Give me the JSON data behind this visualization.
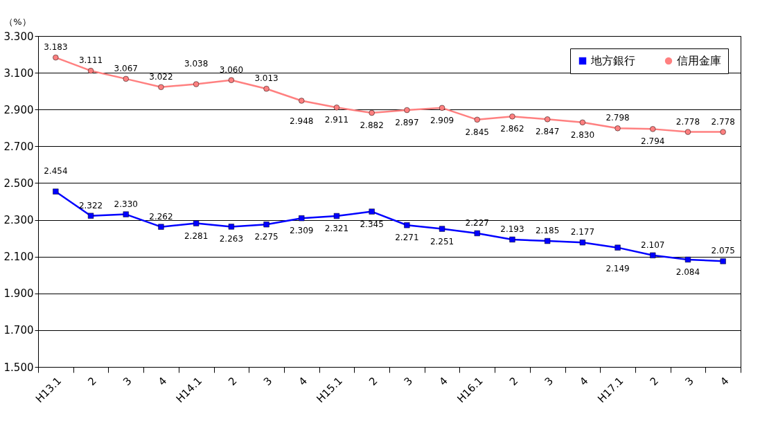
{
  "chart_data": {
    "type": "line",
    "ylabel": "（%）",
    "categories": [
      "H13.1",
      "2",
      "3",
      "4",
      "H14.1",
      "2",
      "3",
      "4",
      "H15.1",
      "2",
      "3",
      "4",
      "H16.1",
      "2",
      "3",
      "4",
      "H17.1",
      "2",
      "3",
      "4"
    ],
    "series": [
      {
        "name": "地方銀行",
        "color": "#0000ff",
        "marker": "square",
        "values": [
          2.454,
          2.322,
          2.33,
          2.262,
          2.281,
          2.263,
          2.275,
          2.309,
          2.321,
          2.345,
          2.271,
          2.251,
          2.227,
          2.193,
          2.185,
          2.177,
          2.149,
          2.107,
          2.084,
          2.075
        ]
      },
      {
        "name": "信用金庫",
        "color": "#ff8080",
        "marker": "circle",
        "values": [
          3.183,
          3.111,
          3.067,
          3.022,
          3.038,
          3.06,
          3.013,
          2.948,
          2.911,
          2.882,
          2.897,
          2.909,
          2.845,
          2.862,
          2.847,
          2.83,
          2.798,
          2.794,
          2.778,
          2.778
        ]
      }
    ],
    "ylim": [
      1.5,
      3.3
    ],
    "yticks": [
      {
        "value": 1.5,
        "label": "1.500"
      },
      {
        "value": 1.7,
        "label": "1.700"
      },
      {
        "value": 1.9,
        "label": "1.900"
      },
      {
        "value": 2.1,
        "label": "2.100"
      },
      {
        "value": 2.3,
        "label": "2.300"
      },
      {
        "value": 2.5,
        "label": "2.500"
      },
      {
        "value": 2.7,
        "label": "2.700"
      },
      {
        "value": 2.9,
        "label": "2.900"
      },
      {
        "value": 3.1,
        "label": "3.100"
      },
      {
        "value": 3.3,
        "label": "3.300"
      }
    ],
    "grid": "y",
    "legend": "top right",
    "value_labels": [
      [
        "2.454",
        "2.322",
        "2.330",
        "2.262",
        "2.281",
        "2.263",
        "2.275",
        "2.309",
        "2.321",
        "2.345",
        "2.271",
        "2.251",
        "2.227",
        "2.193",
        "2.185",
        "2.177",
        "2.149",
        "2.107",
        "2.084",
        "2.075"
      ],
      [
        "3.183",
        "3.111",
        "3.067",
        "3.022",
        "3.038",
        "3.060",
        "3.013",
        "2.948",
        "2.911",
        "2.882",
        "2.897",
        "2.909",
        "2.845",
        "2.862",
        "2.847",
        "2.830",
        "2.798",
        "2.794",
        "2.778",
        "2.778"
      ]
    ],
    "line_style": "solid"
  }
}
